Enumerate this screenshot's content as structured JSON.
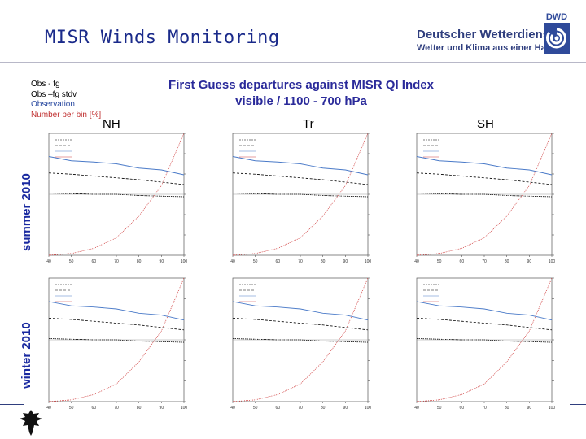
{
  "header": {
    "title": "MISR Winds Monitoring",
    "brand_line1": "Deutscher Wetterdienst",
    "brand_line2": "Wetter und Klima aus einer Hand",
    "logo_text": "DWD"
  },
  "legend": {
    "items": [
      {
        "label": "Obs - fg",
        "color": "#000000"
      },
      {
        "label": "Obs –fg stdv",
        "color": "#000000"
      },
      {
        "label": "Observation",
        "color": "#2a4aa0"
      },
      {
        "label": "Number per bin [%]",
        "color": "#c03030"
      }
    ]
  },
  "subtitle": {
    "line1": "First Guess departures against MISR QI Index",
    "line2": "visible / 1100 - 700 hPa"
  },
  "columns": [
    "NH",
    "Tr",
    "SH"
  ],
  "rows": [
    "summer 2010",
    "winter 2010"
  ],
  "colors": {
    "obs": "#4a7ac8",
    "count": "#d04040",
    "dep": "#000000",
    "stdv": "#000000"
  },
  "chart_data": {
    "type": "line",
    "x": [
      40,
      50,
      60,
      70,
      80,
      90,
      100
    ],
    "xlim": [
      40,
      100
    ],
    "xticks": [
      40,
      50,
      60,
      70,
      80,
      90,
      100
    ],
    "left_ylim": [
      -10,
      10
    ],
    "series": [
      {
        "name": "Obs - fg",
        "values": [
          0.2,
          0.1,
          0.0,
          0.0,
          -0.2,
          -0.3,
          -0.4
        ]
      },
      {
        "name": "Obs –fg stdv",
        "values": [
          3.5,
          3.3,
          3.0,
          2.7,
          2.4,
          2.0,
          1.6
        ]
      },
      {
        "name": "Observation",
        "values": [
          6.2,
          5.5,
          5.3,
          5.0,
          4.3,
          4.0,
          3.2
        ]
      },
      {
        "name": "Number per bin [%]",
        "values": [
          0.0,
          0.2,
          0.8,
          2.0,
          4.5,
          8.0,
          14.0
        ]
      }
    ]
  }
}
